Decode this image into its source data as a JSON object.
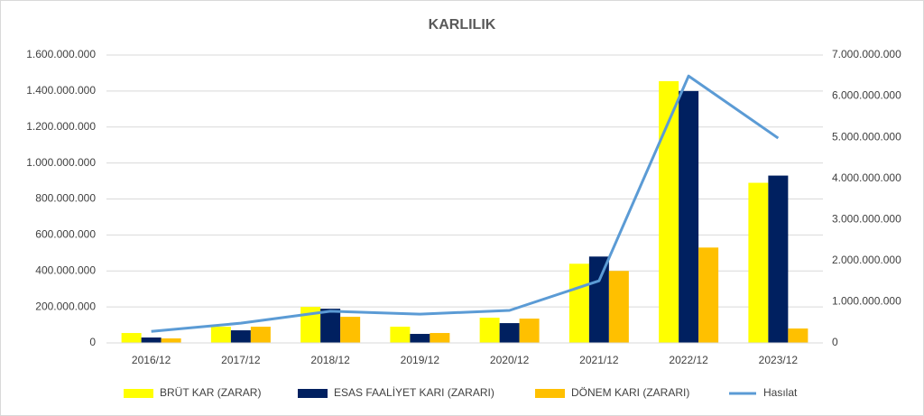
{
  "chart_data": {
    "type": "bar",
    "title": "KARLILIK",
    "categories": [
      "2016/12",
      "2017/12",
      "2018/12",
      "2019/12",
      "2020/12",
      "2021/12",
      "2022/12",
      "2023/12"
    ],
    "series": [
      {
        "name": "BRÜT KAR (ZARAR)",
        "color": "#ffff00",
        "type": "bar",
        "values": [
          55000000,
          90000000,
          200000000,
          90000000,
          140000000,
          440000000,
          1455000000,
          890000000
        ]
      },
      {
        "name": "ESAS FAALİYET KARI (ZARARI)",
        "color": "#002060",
        "type": "bar",
        "values": [
          30000000,
          70000000,
          190000000,
          50000000,
          110000000,
          480000000,
          1400000000,
          930000000
        ]
      },
      {
        "name": "DÖNEM KARI (ZARARI)",
        "color": "#ffc000",
        "type": "bar",
        "values": [
          25000000,
          90000000,
          145000000,
          55000000,
          135000000,
          400000000,
          530000000,
          80000000
        ]
      },
      {
        "name": "Hasılat",
        "color": "#5b9bd5",
        "type": "line",
        "axis": "y2",
        "values": [
          280000000,
          480000000,
          770000000,
          700000000,
          790000000,
          1510000000,
          6490000000,
          4980000000
        ]
      }
    ],
    "ylim": [
      0,
      1600000000
    ],
    "yticks": [
      0,
      {
        "value": 200000000,
        "label": "200.000.000"
      },
      {
        "value": 400000000,
        "label": "400.000.000"
      },
      {
        "value": 600000000,
        "label": "600.000.000"
      },
      {
        "value": 800000000,
        "label": "800.000.000"
      },
      {
        "value": 1000000000,
        "label": "1.000.000.000"
      },
      {
        "value": 1200000000,
        "label": "1.200.000.000"
      },
      {
        "value": 1400000000,
        "label": "1.400.000.000"
      },
      {
        "value": 1600000000,
        "label": "1.600.000.000"
      }
    ],
    "y2lim": [
      0,
      7000000000
    ],
    "y2ticks": [
      0,
      {
        "value": 1000000000,
        "label": "1.000.000.000"
      },
      {
        "value": 2000000000,
        "label": "2.000.000.000"
      },
      {
        "value": 3000000000,
        "label": "3.000.000.000"
      },
      {
        "value": 4000000000,
        "label": "4.000.000.000"
      },
      {
        "value": 5000000000,
        "label": "5.000.000.000"
      },
      {
        "value": 6000000000,
        "label": "6.000.000.000"
      },
      {
        "value": 7000000000,
        "label": "7.000.000.000"
      }
    ],
    "grid": true,
    "legend": "bottom"
  }
}
